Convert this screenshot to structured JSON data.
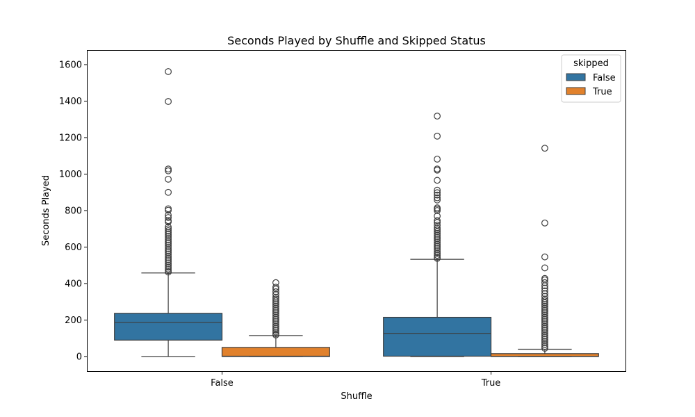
{
  "chart_data": {
    "type": "boxplot",
    "title": "Seconds Played by Shuffle and Skipped Status",
    "xlabel": "Shuffle",
    "ylabel": "Seconds Played",
    "categories": [
      "False",
      "True"
    ],
    "ylim": [
      -80,
      1680
    ],
    "yticks": [
      0,
      200,
      400,
      600,
      800,
      1000,
      1200,
      1400,
      1600
    ],
    "grid": false,
    "legend": {
      "title": "skipped",
      "position": "top-right",
      "entries": [
        "False",
        "True"
      ]
    },
    "series": [
      {
        "name": "False",
        "color": "#3274a1",
        "boxes": [
          {
            "category": "False",
            "whisker_low": 0,
            "q1": 90,
            "median": 187,
            "q3": 237,
            "whisker_high": 458,
            "outliers": [
              1562,
              1398,
              1028,
              1018,
              972,
              900,
              810,
              802,
              775,
              762,
              745,
              738,
              710,
              700,
              690,
              680,
              670,
              660,
              650,
              640,
              630,
              620,
              610,
              600,
              590,
              580,
              570,
              560,
              550,
              540,
              530,
              520,
              510,
              500,
              490,
              480,
              470,
              463
            ]
          },
          {
            "category": "True",
            "whisker_low": 0,
            "q1": 2,
            "median": 127,
            "q3": 215,
            "whisker_high": 533,
            "outliers": [
              1318,
              1208,
              1082,
              1028,
              1022,
              966,
              912,
              898,
              885,
              870,
              858,
              815,
              808,
              800,
              770,
              745,
              735,
              720,
              705,
              695,
              685,
              675,
              665,
              655,
              645,
              635,
              625,
              615,
              605,
              595,
              585,
              575,
              565,
              555,
              545,
              538
            ]
          }
        ]
      },
      {
        "name": "True",
        "color": "#e1812c",
        "boxes": [
          {
            "category": "False",
            "whisker_low": 0,
            "q1": 0,
            "median": 2,
            "q3": 50,
            "whisker_high": 115,
            "outliers": [
              405,
              380,
              370,
              355,
              340,
              325,
              315,
              305,
              295,
              285,
              275,
              265,
              255,
              245,
              235,
              225,
              215,
              205,
              195,
              185,
              175,
              165,
              155,
              145,
              135,
              125,
              118
            ]
          },
          {
            "category": "True",
            "whisker_low": 0,
            "q1": 0,
            "median": 1,
            "q3": 16,
            "whisker_high": 40,
            "outliers": [
              1142,
              732,
              546,
              486,
              428,
              420,
              405,
              388,
              375,
              360,
              345,
              330,
              315,
              305,
              295,
              285,
              275,
              265,
              255,
              245,
              235,
              225,
              215,
              205,
              195,
              185,
              175,
              165,
              155,
              145,
              135,
              125,
              115,
              105,
              95,
              85,
              75,
              65,
              55,
              45
            ]
          }
        ]
      }
    ]
  }
}
